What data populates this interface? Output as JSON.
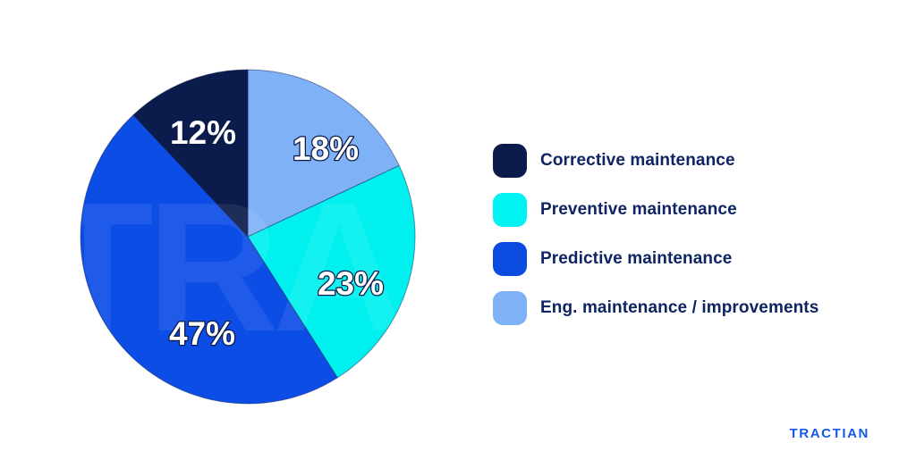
{
  "chart_data": {
    "type": "pie",
    "title": "",
    "direction": "clockwise",
    "start_angle_deg": 0,
    "legend_position": "right",
    "slices": [
      {
        "key": "eng",
        "label": "Eng. maintenance / improvements",
        "value": 18,
        "display": "18%",
        "color": "#7FB1F7"
      },
      {
        "key": "preventive",
        "label": "Preventive maintenance",
        "value": 23,
        "display": "23%",
        "color": "#00F0F0"
      },
      {
        "key": "predictive",
        "label": "Predictive maintenance",
        "value": 47,
        "display": "47%",
        "color": "#0C4DE6"
      },
      {
        "key": "corrective",
        "label": "Corrective maintenance",
        "value": 12,
        "display": "12%",
        "color": "#0B1B4B"
      }
    ]
  },
  "legend": {
    "items": [
      {
        "label": "Corrective maintenance",
        "color": "#0B1B4B"
      },
      {
        "label": "Preventive maintenance",
        "color": "#00F2F2"
      },
      {
        "label": "Predictive maintenance",
        "color": "#0B4BE0"
      },
      {
        "label": "Eng. maintenance / improvements",
        "color": "#7FB1F7"
      }
    ]
  },
  "watermark": {
    "text": "TRA"
  },
  "brand": {
    "logo_text": "TRACTIAN",
    "color": "#1459E9"
  }
}
